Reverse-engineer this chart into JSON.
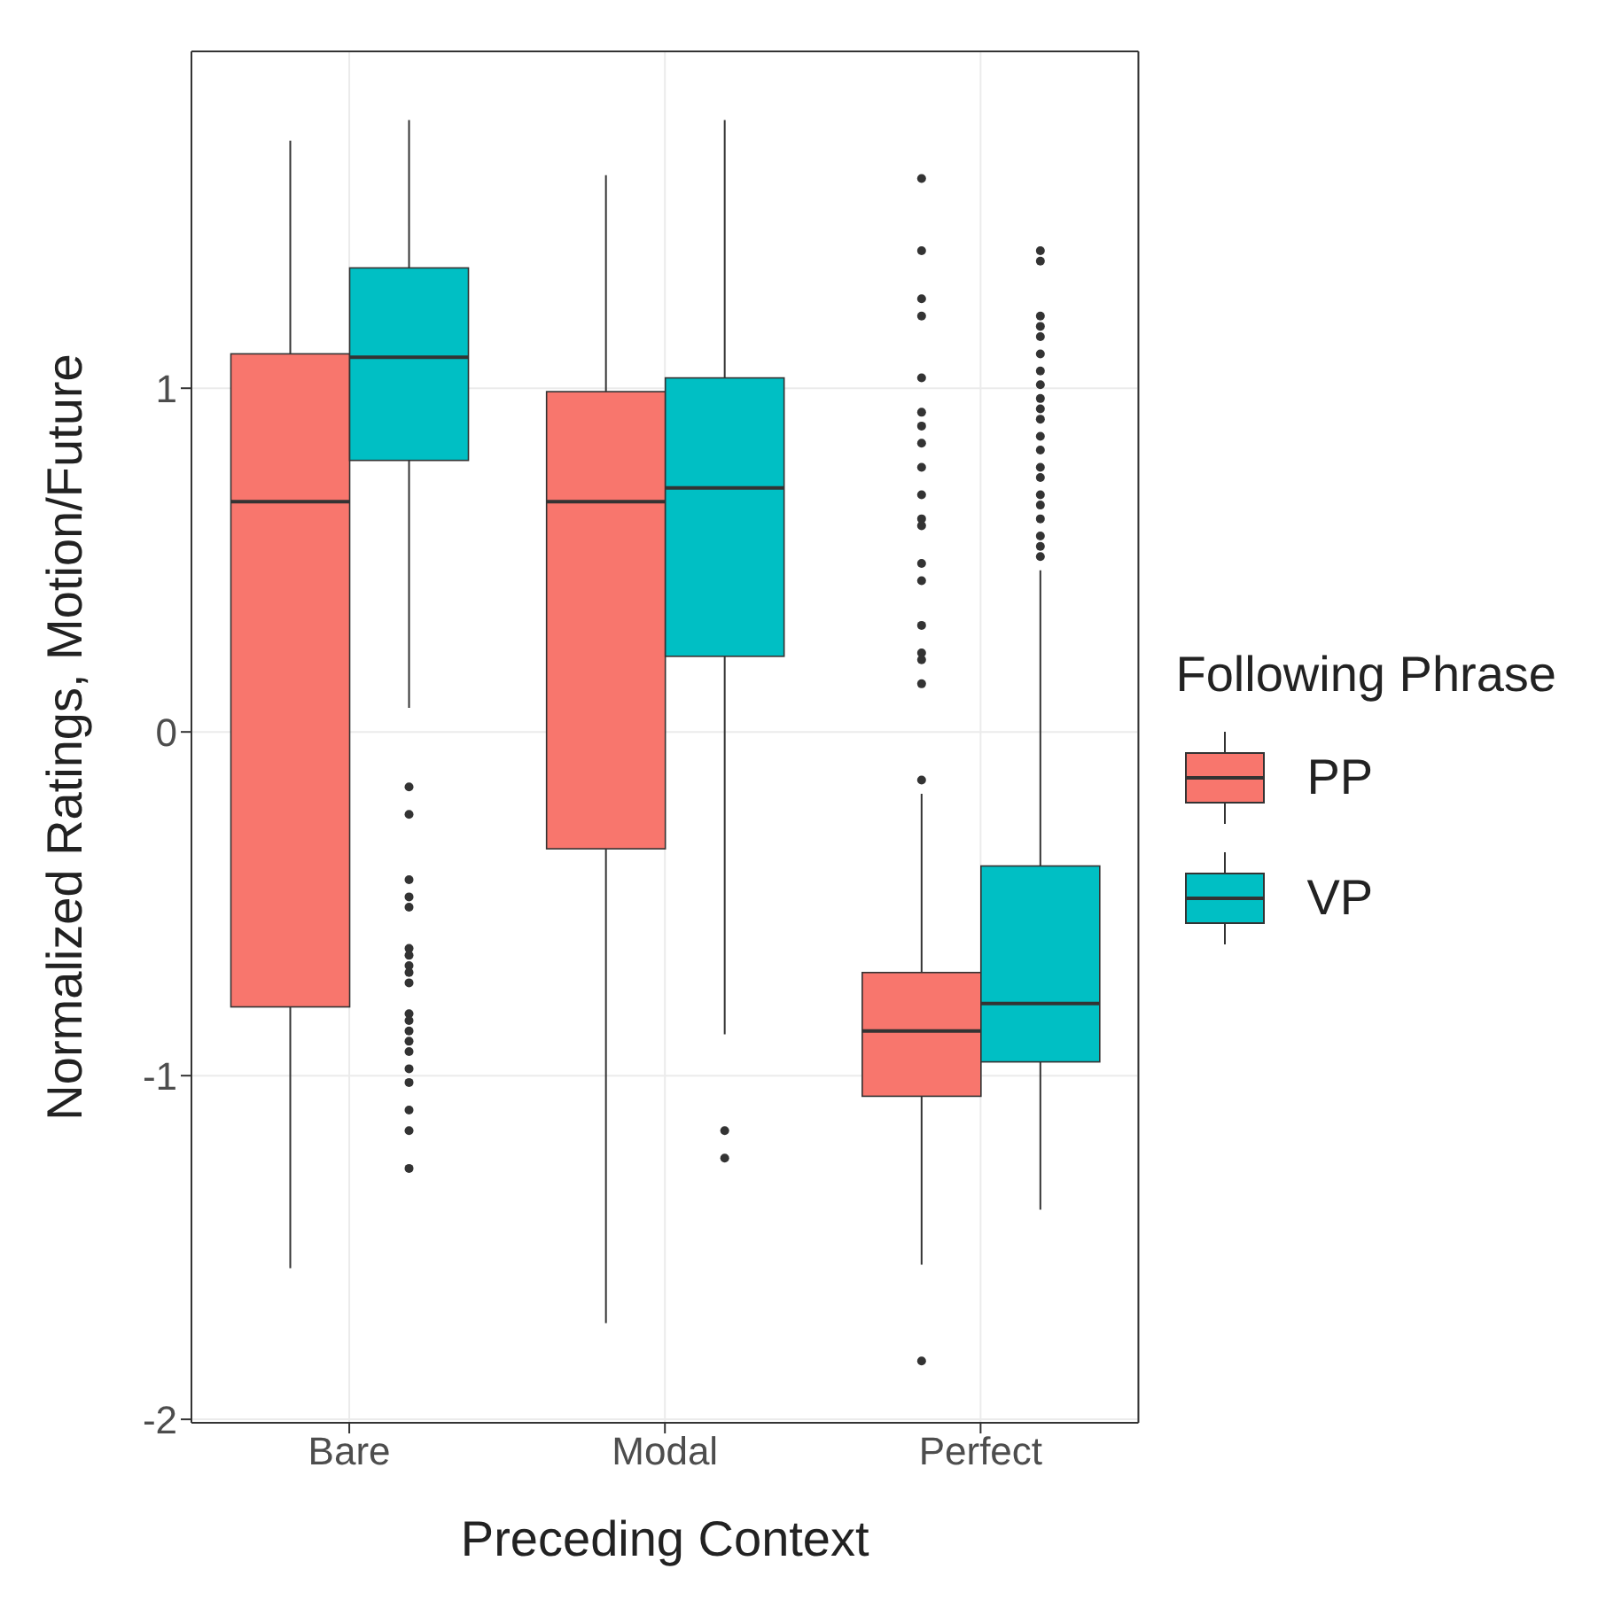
{
  "chart_data": {
    "type": "box",
    "categories": [
      "Bare",
      "Modal",
      "Perfect"
    ],
    "xlabel": "Preceding Context",
    "ylabel": "Normalized Ratings, Motion/Future",
    "legend_title": "Following Phrase",
    "legend": "right",
    "grid": true,
    "ylim": [
      -2.01,
      1.98
    ],
    "yticks": [
      -2,
      -1,
      0,
      1
    ],
    "series": [
      {
        "name": "PP",
        "color": "#f8766d",
        "boxes": [
          {
            "low": -1.56,
            "q1": -0.8,
            "median": 0.67,
            "q3": 1.1,
            "high": 1.72
          },
          {
            "low": -1.72,
            "q1": -0.34,
            "median": 0.67,
            "q3": 0.99,
            "high": 1.62
          },
          {
            "low": -1.55,
            "q1": -1.06,
            "median": -0.87,
            "q3": -0.7,
            "high": -0.18,
            "outliers": [
              -0.14,
              -1.83,
              1.61,
              1.4,
              1.26,
              1.21,
              1.03,
              0.93,
              0.89,
              0.84,
              0.77,
              0.69,
              0.62,
              0.6,
              0.49,
              0.44,
              0.31,
              0.23,
              0.21,
              0.14
            ]
          }
        ]
      },
      {
        "name": "VP",
        "color": "#00bfc4",
        "boxes": [
          {
            "low": 0.07,
            "q1": 0.79,
            "median": 1.09,
            "q3": 1.35,
            "high": 1.78,
            "outliers": [
              -0.16,
              -0.24,
              -0.43,
              -0.48,
              -0.51,
              -0.63,
              -0.65,
              -0.68,
              -0.7,
              -0.73,
              -0.82,
              -0.84,
              -0.87,
              -0.9,
              -0.93,
              -0.98,
              -1.02,
              -1.1,
              -1.16,
              -1.27
            ]
          },
          {
            "low": -0.88,
            "q1": 0.22,
            "median": 0.71,
            "q3": 1.03,
            "high": 1.78,
            "outliers": [
              -1.16,
              -1.24
            ]
          },
          {
            "low": -1.39,
            "q1": -0.96,
            "median": -0.79,
            "q3": -0.39,
            "high": 0.47,
            "outliers": [
              1.4,
              1.37,
              1.21,
              1.18,
              1.15,
              1.1,
              1.05,
              1.01,
              0.97,
              0.94,
              0.91,
              0.86,
              0.82,
              0.77,
              0.74,
              0.69,
              0.66,
              0.62,
              0.57,
              0.54,
              0.51
            ]
          }
        ]
      }
    ]
  }
}
